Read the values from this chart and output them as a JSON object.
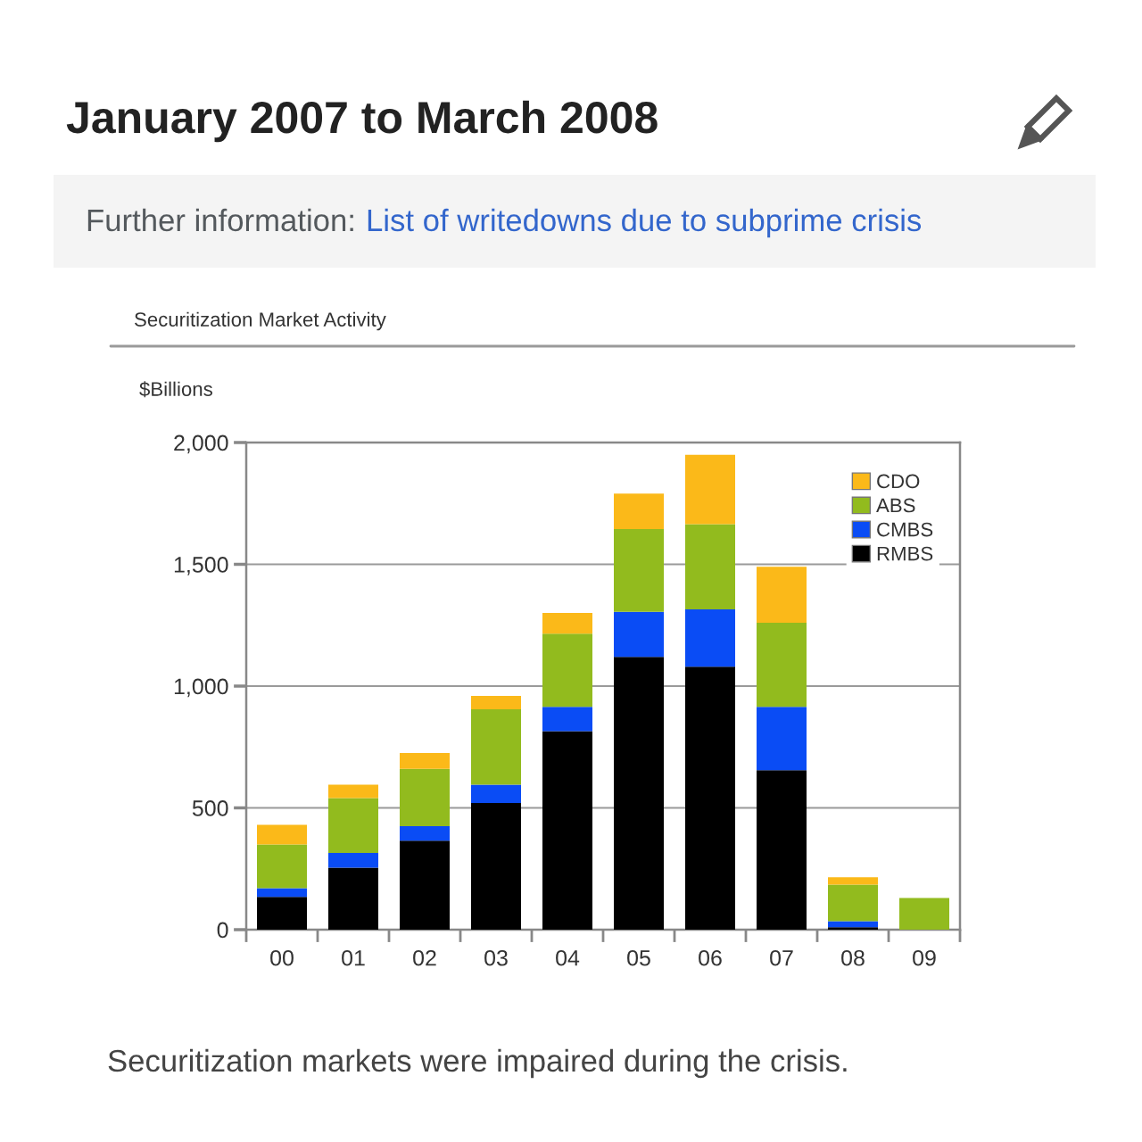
{
  "chart_data": {
    "type": "bar",
    "title": "January 2007 to March 2008",
    "subtitle": "Securitization Market Activity",
    "ylabel": "$Billions",
    "annotations": [
      "Further information:",
      "List of writedowns due to subprime crisis",
      "Securitization markets were impaired during the crisis."
    ],
    "categories": [
      "00",
      "01",
      "02",
      "03",
      "04",
      "05",
      "06",
      "07",
      "08",
      "09"
    ],
    "stacked": true,
    "series": [
      {
        "name": "RMBS",
        "color": "#000000",
        "values": [
          135,
          255,
          365,
          520,
          815,
          1120,
          1080,
          655,
          10,
          null
        ]
      },
      {
        "name": "CMBS",
        "color": "#0a4cf5",
        "values": [
          35,
          60,
          60,
          75,
          100,
          185,
          235,
          260,
          25,
          null
        ]
      },
      {
        "name": "ABS",
        "color": "#92bb1e",
        "values": [
          180,
          225,
          235,
          310,
          300,
          340,
          350,
          345,
          150,
          130
        ]
      },
      {
        "name": "CDO",
        "color": "#fbb919",
        "values": [
          80,
          55,
          65,
          55,
          85,
          145,
          285,
          230,
          30,
          null
        ]
      }
    ],
    "ylim": [
      0,
      2000
    ],
    "yticks": [
      0,
      500,
      {
        "value": 1000,
        "label": "1,000"
      },
      {
        "value": 1500,
        "label": "1,500"
      },
      {
        "value": 2000,
        "label": "2,000"
      }
    ],
    "grid": "y",
    "legend": "top right"
  }
}
